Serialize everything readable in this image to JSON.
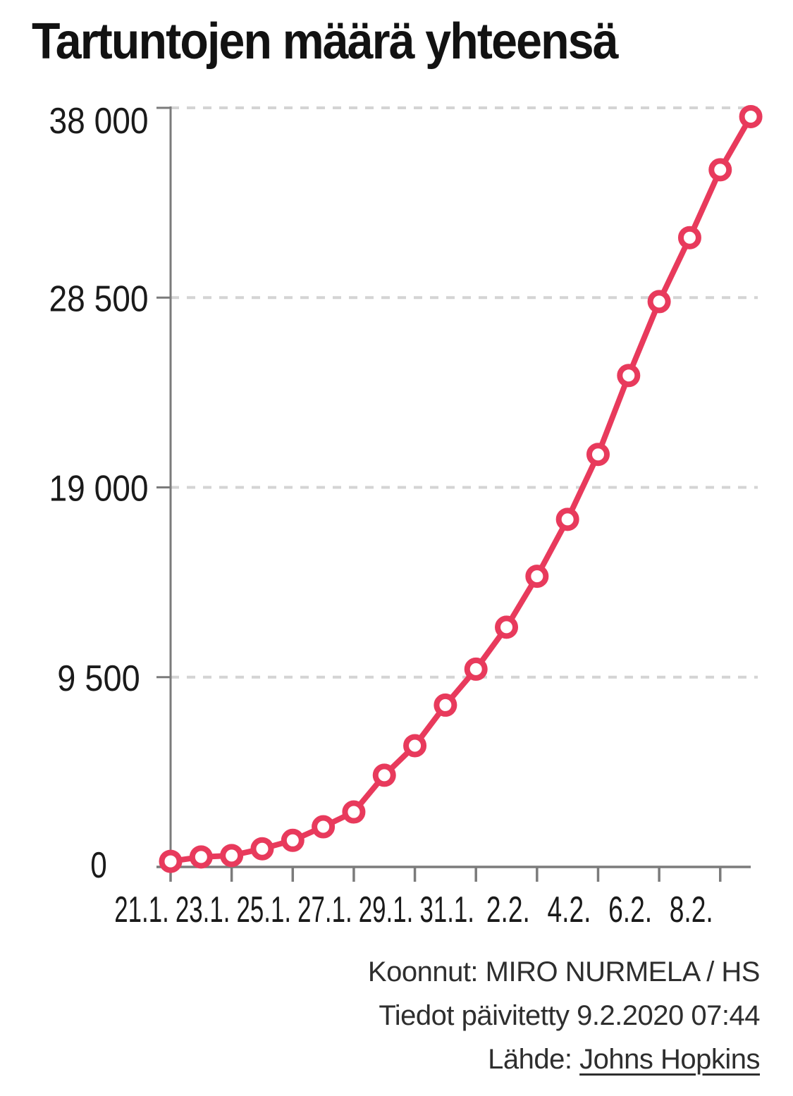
{
  "title": "Tartuntojen määrä yhteensä",
  "chart_data": {
    "type": "line",
    "title": "Tartuntojen määrä yhteensä",
    "x": [
      "21.1.",
      "22.1.",
      "23.1.",
      "24.1.",
      "25.1.",
      "26.1.",
      "27.1.",
      "28.1.",
      "29.1.",
      "30.1.",
      "31.1.",
      "1.2.",
      "2.2.",
      "3.2.",
      "4.2.",
      "5.2.",
      "6.2.",
      "7.2.",
      "8.2.",
      "9.2."
    ],
    "series": [
      {
        "name": "Tartuntojen määrä yhteensä",
        "values": [
          280,
          500,
          570,
          910,
          1330,
          2010,
          2750,
          4590,
          6070,
          8100,
          9900,
          12000,
          14550,
          17400,
          20650,
          24600,
          28300,
          31500,
          34900,
          37560
        ]
      }
    ],
    "x_tick_labels": [
      "21.1.",
      "23.1.",
      "25.1.",
      "27.1.",
      "29.1.",
      "31.1.",
      "2.2.",
      "4.2.",
      "6.2.",
      "8.2."
    ],
    "y_ticks": [
      {
        "value": 0,
        "label": "0"
      },
      {
        "value": 9500,
        "label": "9 500"
      },
      {
        "value": 19000,
        "label": "19 000"
      },
      {
        "value": 28500,
        "label": "28 500"
      },
      {
        "value": 38000,
        "label": "38 000"
      }
    ],
    "ylim": [
      0,
      38000
    ],
    "xlabel": "",
    "ylabel": "",
    "grid": "dashed-horizontal",
    "legend": "none",
    "marker": "open-circle",
    "colors": {
      "line": "#e83a5c",
      "marker_fill": "#ffffff",
      "axis": "#7b7b7b",
      "grid": "#d4d4d4",
      "label": "#1a1a1a"
    }
  },
  "footer": {
    "credit": "Koonnut: MIRO NURMELA / HS",
    "updated": "Tiedot päivitetty 9.2.2020 07:44",
    "source_label": "Lähde:",
    "source_link_text": "Johns Hopkins"
  }
}
